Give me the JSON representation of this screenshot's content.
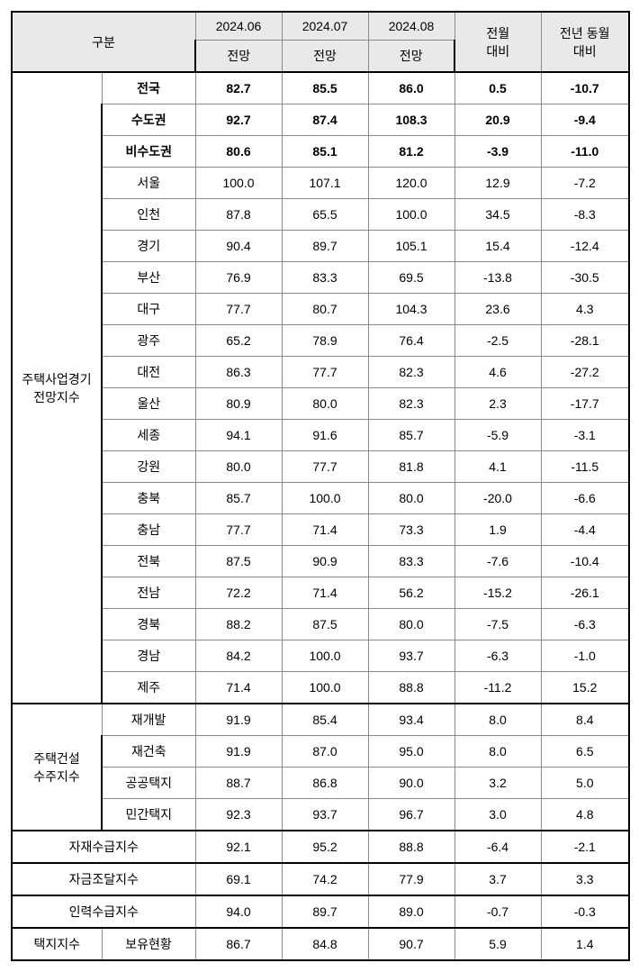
{
  "header": {
    "gubun": "구분",
    "m1": "2024.06",
    "m2": "2024.07",
    "m3": "2024.08",
    "sub": "전망",
    "mom_l1": "전월",
    "mom_l2": "대비",
    "yoy_l1": "전년 동월",
    "yoy_l2": "대비"
  },
  "groups": {
    "g1": "주택사업경기\n전망지수",
    "g2": "주택건설\n수주지수",
    "g3": "자재수급지수",
    "g4": "자금조달지수",
    "g5": "인력수급지수",
    "g6": "택지지수",
    "g6sub": "보유현황"
  },
  "r": [
    {
      "n": "전국",
      "a": "82.7",
      "b": "85.5",
      "c": "86.0",
      "d": "0.5",
      "e": "-10.7",
      "bold": true
    },
    {
      "n": "수도권",
      "a": "92.7",
      "b": "87.4",
      "c": "108.3",
      "d": "20.9",
      "e": "-9.4",
      "bold": true
    },
    {
      "n": "비수도권",
      "a": "80.6",
      "b": "85.1",
      "c": "81.2",
      "d": "-3.9",
      "e": "-11.0",
      "bold": true
    },
    {
      "n": "서울",
      "a": "100.0",
      "b": "107.1",
      "c": "120.0",
      "d": "12.9",
      "e": "-7.2"
    },
    {
      "n": "인천",
      "a": "87.8",
      "b": "65.5",
      "c": "100.0",
      "d": "34.5",
      "e": "-8.3"
    },
    {
      "n": "경기",
      "a": "90.4",
      "b": "89.7",
      "c": "105.1",
      "d": "15.4",
      "e": "-12.4"
    },
    {
      "n": "부산",
      "a": "76.9",
      "b": "83.3",
      "c": "69.5",
      "d": "-13.8",
      "e": "-30.5"
    },
    {
      "n": "대구",
      "a": "77.7",
      "b": "80.7",
      "c": "104.3",
      "d": "23.6",
      "e": "4.3"
    },
    {
      "n": "광주",
      "a": "65.2",
      "b": "78.9",
      "c": "76.4",
      "d": "-2.5",
      "e": "-28.1"
    },
    {
      "n": "대전",
      "a": "86.3",
      "b": "77.7",
      "c": "82.3",
      "d": "4.6",
      "e": "-27.2"
    },
    {
      "n": "울산",
      "a": "80.9",
      "b": "80.0",
      "c": "82.3",
      "d": "2.3",
      "e": "-17.7"
    },
    {
      "n": "세종",
      "a": "94.1",
      "b": "91.6",
      "c": "85.7",
      "d": "-5.9",
      "e": "-3.1"
    },
    {
      "n": "강원",
      "a": "80.0",
      "b": "77.7",
      "c": "81.8",
      "d": "4.1",
      "e": "-11.5"
    },
    {
      "n": "충북",
      "a": "85.7",
      "b": "100.0",
      "c": "80.0",
      "d": "-20.0",
      "e": "-6.6"
    },
    {
      "n": "충남",
      "a": "77.7",
      "b": "71.4",
      "c": "73.3",
      "d": "1.9",
      "e": "-4.4"
    },
    {
      "n": "전북",
      "a": "87.5",
      "b": "90.9",
      "c": "83.3",
      "d": "-7.6",
      "e": "-10.4"
    },
    {
      "n": "전남",
      "a": "72.2",
      "b": "71.4",
      "c": "56.2",
      "d": "-15.2",
      "e": "-26.1"
    },
    {
      "n": "경북",
      "a": "88.2",
      "b": "87.5",
      "c": "80.0",
      "d": "-7.5",
      "e": "-6.3"
    },
    {
      "n": "경남",
      "a": "84.2",
      "b": "100.0",
      "c": "93.7",
      "d": "-6.3",
      "e": "-1.0"
    },
    {
      "n": "제주",
      "a": "71.4",
      "b": "100.0",
      "c": "88.8",
      "d": "-11.2",
      "e": "15.2"
    }
  ],
  "r2": [
    {
      "n": "재개발",
      "a": "91.9",
      "b": "85.4",
      "c": "93.4",
      "d": "8.0",
      "e": "8.4"
    },
    {
      "n": "재건축",
      "a": "91.9",
      "b": "87.0",
      "c": "95.0",
      "d": "8.0",
      "e": "6.5"
    },
    {
      "n": "공공택지",
      "a": "88.7",
      "b": "86.8",
      "c": "90.0",
      "d": "3.2",
      "e": "5.0"
    },
    {
      "n": "민간택지",
      "a": "92.3",
      "b": "93.7",
      "c": "96.7",
      "d": "3.0",
      "e": "4.8"
    }
  ],
  "r3": {
    "a": "92.1",
    "b": "95.2",
    "c": "88.8",
    "d": "-6.4",
    "e": "-2.1"
  },
  "r4": {
    "a": "69.1",
    "b": "74.2",
    "c": "77.9",
    "d": "3.7",
    "e": "3.3"
  },
  "r5": {
    "a": "94.0",
    "b": "89.7",
    "c": "89.0",
    "d": "-0.7",
    "e": "-0.3"
  },
  "r6": {
    "a": "86.7",
    "b": "84.8",
    "c": "90.7",
    "d": "5.9",
    "e": "1.4"
  }
}
